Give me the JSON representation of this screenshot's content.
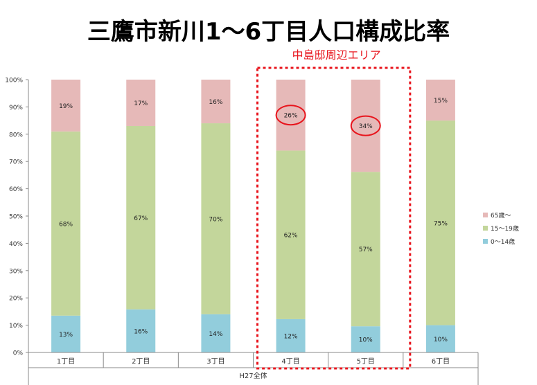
{
  "title": "三鷹市新川1〜6丁目人口構成比率",
  "highlight_label": "中島邸周辺エリア",
  "chart_data": {
    "type": "bar",
    "stacked": true,
    "percent": true,
    "categories": [
      "1丁目",
      "2丁目",
      "3丁目",
      "4丁目",
      "5丁目",
      "6丁目"
    ],
    "group_label": "H27全体",
    "series": [
      {
        "name": "0〜14歳",
        "color": "#92cddc",
        "values": [
          13,
          16,
          14,
          12,
          10,
          10
        ]
      },
      {
        "name": "15〜19歳",
        "color": "#c3d69b",
        "values": [
          68,
          67,
          70,
          62,
          57,
          75
        ]
      },
      {
        "name": "65歳〜",
        "color": "#e6b9b8",
        "values": [
          19,
          17,
          16,
          26,
          34,
          15
        ]
      }
    ],
    "segment_heights": [
      [
        13.5,
        67.5,
        19
      ],
      [
        15.8,
        67.2,
        17
      ],
      [
        14,
        70,
        16
      ],
      [
        12.2,
        61.8,
        26
      ],
      [
        9.6,
        56.6,
        33.8
      ],
      [
        10,
        75,
        15
      ]
    ],
    "yticks": [
      "0%",
      "10%",
      "20%",
      "30%",
      "40%",
      "50%",
      "60%",
      "70%",
      "80%",
      "90%",
      "100%"
    ],
    "ylim": [
      0,
      100
    ],
    "legend_position": "right",
    "legend_order": [
      "65歳〜",
      "15〜19歳",
      "0〜14歳"
    ],
    "highlighted_categories": [
      "4丁目",
      "5丁目"
    ],
    "circled_values": [
      {
        "category": "4丁目",
        "series": "65歳〜"
      },
      {
        "category": "5丁目",
        "series": "65歳〜"
      }
    ],
    "grid": false
  }
}
